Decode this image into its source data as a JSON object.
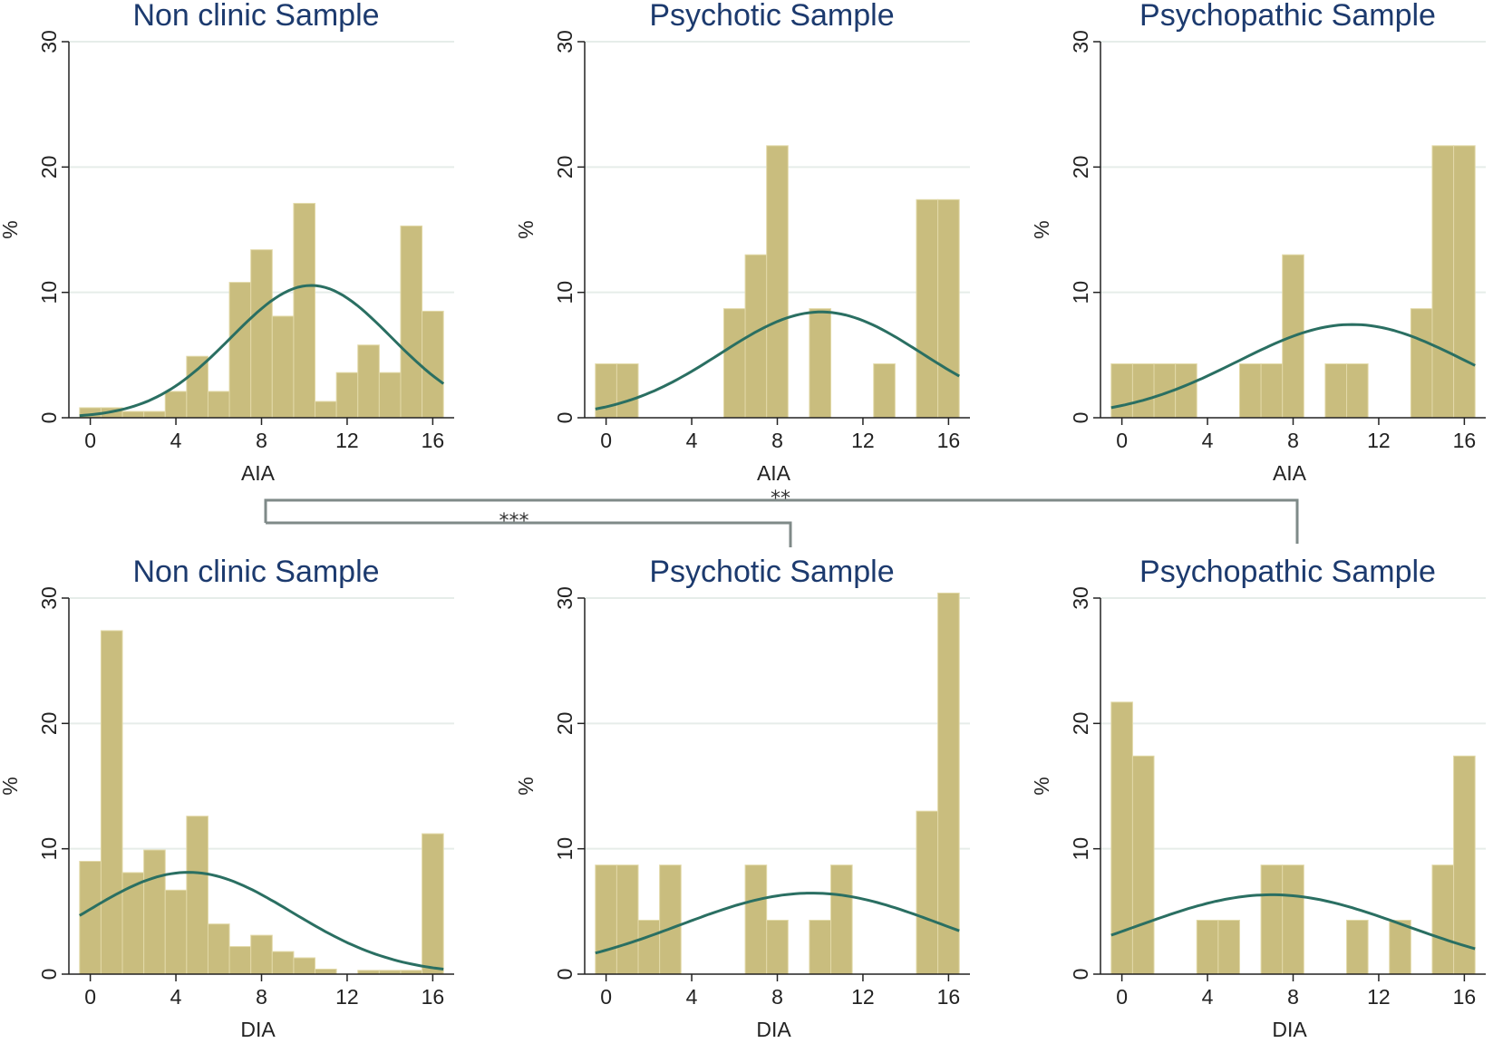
{
  "colors": {
    "bar": "#c9bd7e",
    "curve": "#2a6f62",
    "grid": "#e6ede9",
    "axis": "#222222",
    "title": "#1c3a6e",
    "bracket": "#7f8a88"
  },
  "chart_data": [
    {
      "type": "bar",
      "panel": "top-left",
      "title": "Non clinic Sample",
      "xlabel": "AIA",
      "ylabel": "%",
      "xlim": [
        -1,
        17
      ],
      "ylim": [
        0,
        30
      ],
      "xticks": [
        0,
        4,
        8,
        12,
        16
      ],
      "yticks": [
        0,
        10,
        20,
        30
      ],
      "bin_width": 1,
      "bins": [
        0,
        1,
        2,
        3,
        4,
        5,
        6,
        7,
        8,
        9,
        10,
        11,
        12,
        13,
        14,
        15,
        16
      ],
      "values": [
        0.8,
        0.8,
        0.5,
        0.5,
        2.1,
        4.9,
        2.1,
        10.8,
        13.4,
        8.1,
        17.1,
        1.3,
        3.6,
        5.8,
        3.6,
        15.3,
        8.5
      ],
      "normal_curve": {
        "mean": 10.3,
        "peak": 10.5
      }
    },
    {
      "type": "bar",
      "panel": "top-middle",
      "title": "Psychotic Sample",
      "xlabel": "AIA",
      "ylabel": "%",
      "xlim": [
        -1,
        17
      ],
      "ylim": [
        0,
        30
      ],
      "xticks": [
        0,
        4,
        8,
        12,
        16
      ],
      "yticks": [
        0,
        10,
        20,
        30
      ],
      "bin_width": 1,
      "bins": [
        0,
        1,
        2,
        3,
        4,
        5,
        6,
        7,
        8,
        9,
        10,
        11,
        12,
        13,
        14,
        15,
        16
      ],
      "values": [
        4.3,
        4.3,
        0,
        0,
        0,
        0,
        8.7,
        13.0,
        21.7,
        0,
        8.7,
        0,
        0,
        4.3,
        0,
        17.4,
        17.4
      ],
      "normal_curve": {
        "mean": 10.0,
        "peak": 8.3
      }
    },
    {
      "type": "bar",
      "panel": "top-right",
      "title": "Psychopathic Sample",
      "xlabel": "AIA",
      "ylabel": "%",
      "xlim": [
        -1,
        17
      ],
      "ylim": [
        0,
        30
      ],
      "xticks": [
        0,
        4,
        8,
        12,
        16
      ],
      "yticks": [
        0,
        10,
        20,
        30
      ],
      "bin_width": 1,
      "bins": [
        0,
        1,
        2,
        3,
        4,
        5,
        6,
        7,
        8,
        9,
        10,
        11,
        12,
        13,
        14,
        15,
        16
      ],
      "values": [
        4.3,
        4.3,
        4.3,
        4.3,
        0,
        0,
        4.3,
        4.3,
        13.0,
        0,
        4.3,
        4.3,
        0,
        0,
        8.7,
        21.7,
        21.7
      ],
      "normal_curve": {
        "mean": 10.8,
        "peak": 7.3
      }
    },
    {
      "type": "bar",
      "panel": "bottom-left",
      "title": "Non clinic Sample",
      "xlabel": "DIA",
      "ylabel": "%",
      "xlim": [
        -1,
        17
      ],
      "ylim": [
        0,
        30
      ],
      "xticks": [
        0,
        4,
        8,
        12,
        16
      ],
      "yticks": [
        0,
        10,
        20,
        30
      ],
      "bin_width": 1,
      "bins": [
        0,
        1,
        2,
        3,
        4,
        5,
        6,
        7,
        8,
        9,
        10,
        11,
        12,
        13,
        14,
        15,
        16
      ],
      "values": [
        9.0,
        27.4,
        8.1,
        9.9,
        6.7,
        12.6,
        4.0,
        2.2,
        3.1,
        1.8,
        1.3,
        0.4,
        0,
        0.3,
        0.3,
        0.3,
        11.2
      ],
      "normal_curve": {
        "mean": 4.8,
        "peak": 8.1
      }
    },
    {
      "type": "bar",
      "panel": "bottom-middle",
      "title": "Psychotic Sample",
      "xlabel": "DIA",
      "ylabel": "%",
      "xlim": [
        -1,
        17
      ],
      "ylim": [
        0,
        30
      ],
      "xticks": [
        0,
        4,
        8,
        12,
        16
      ],
      "yticks": [
        0,
        10,
        20,
        30
      ],
      "bin_width": 1,
      "bins": [
        0,
        1,
        2,
        3,
        4,
        5,
        6,
        7,
        8,
        9,
        10,
        11,
        12,
        13,
        14,
        15,
        16
      ],
      "values": [
        8.7,
        8.7,
        4.3,
        8.7,
        0,
        0,
        0,
        8.7,
        4.3,
        0,
        4.3,
        8.7,
        0,
        0,
        0,
        13.0,
        30.4
      ],
      "normal_curve": {
        "mean": 9.6,
        "peak": 6.3
      }
    },
    {
      "type": "bar",
      "panel": "bottom-right",
      "title": "Psychopathic Sample",
      "xlabel": "DIA",
      "ylabel": "%",
      "xlim": [
        -1,
        17
      ],
      "ylim": [
        0,
        30
      ],
      "xticks": [
        0,
        4,
        8,
        12,
        16
      ],
      "yticks": [
        0,
        10,
        20,
        30
      ],
      "bin_width": 1,
      "bins": [
        0,
        1,
        2,
        3,
        4,
        5,
        6,
        7,
        8,
        9,
        10,
        11,
        12,
        13,
        14,
        15,
        16
      ],
      "values": [
        21.7,
        17.4,
        0,
        0,
        4.3,
        4.3,
        0,
        8.7,
        8.7,
        0,
        0,
        4.3,
        0,
        4.3,
        0,
        8.7,
        17.4
      ],
      "normal_curve": {
        "mean": 7.1,
        "peak": 6.2
      }
    }
  ],
  "significance": [
    {
      "label": "***",
      "from": "Non clinic Sample",
      "to": "Psychotic Sample"
    },
    {
      "label": "**",
      "from": "Non clinic Sample",
      "to": "Psychopathic Sample"
    }
  ]
}
